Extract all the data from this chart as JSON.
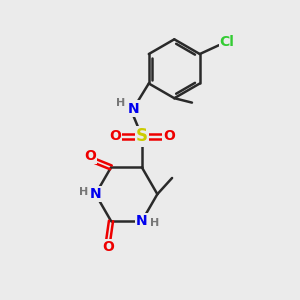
{
  "background_color": "#ebebeb",
  "bond_color": "#2a2a2a",
  "atom_colors": {
    "N": "#0000ee",
    "O": "#ee0000",
    "S": "#cccc00",
    "Cl": "#33cc33",
    "C": "#2a2a2a",
    "H": "#777777"
  },
  "font_size": 10,
  "small_font_size": 8,
  "bond_width": 1.8,
  "fig_size": [
    3.0,
    3.0
  ],
  "dpi": 100
}
